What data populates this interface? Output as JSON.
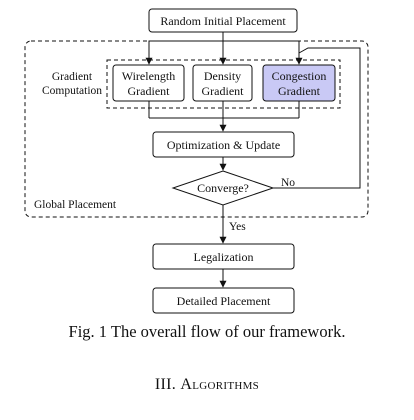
{
  "diagram": {
    "nodes": {
      "random_init": {
        "lines": [
          "Random Initial Placement"
        ]
      },
      "wirelength": {
        "lines": [
          "Wirelength",
          "Gradient"
        ]
      },
      "density": {
        "lines": [
          "Density",
          "Gradient"
        ]
      },
      "congestion": {
        "lines": [
          "Congestion",
          "Gradient"
        ],
        "fill": "#c9c9f5"
      },
      "optimization": {
        "lines": [
          "Optimization & Update"
        ]
      },
      "converge": {
        "lines": [
          "Converge?"
        ]
      },
      "legalization": {
        "lines": [
          "Legalization"
        ]
      },
      "detailed": {
        "lines": [
          "Detailed Placement"
        ]
      }
    },
    "group_labels": {
      "gradient_computation": [
        "Gradient",
        "Computation"
      ],
      "global_placement": "Global Placement"
    },
    "edge_labels": {
      "yes": "Yes",
      "no": "No"
    }
  },
  "caption": "Fig. 1 The overall flow of our framework.",
  "section_heading": {
    "number": "III.",
    "title": "Algorithms"
  }
}
